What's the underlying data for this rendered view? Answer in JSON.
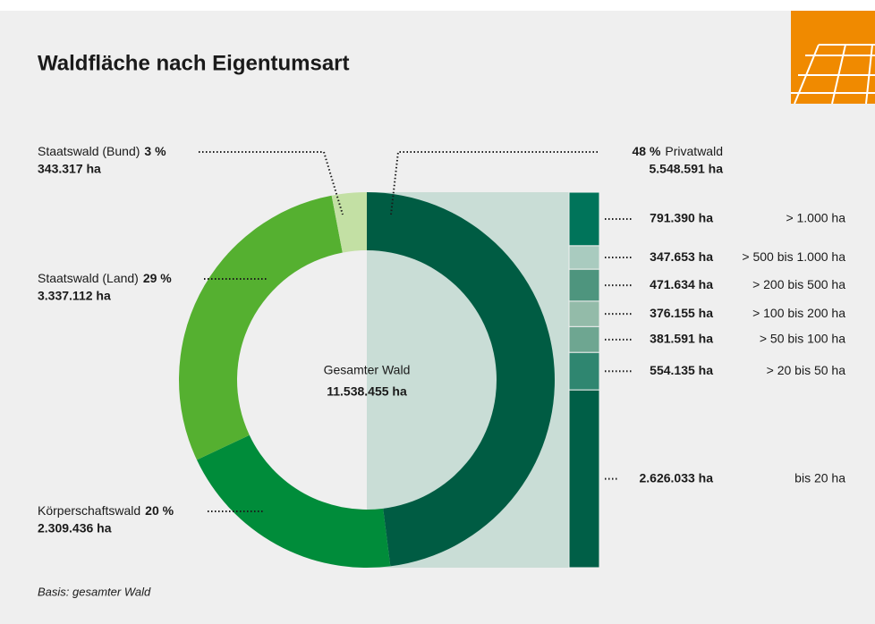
{
  "chart_data": {
    "type": "donut",
    "title": "Waldfläche nach Eigentumsart",
    "center_label": "Gesamter Wald",
    "center_value": "11.538.455 ha",
    "note": "Basis: gesamter Wald",
    "slices": {
      "labels": [
        "Privatwald",
        "Körperschaftswald",
        "Staatswald (Land)",
        "Staatswald (Bund)"
      ],
      "values": [
        48,
        20,
        29,
        3
      ],
      "value_labels": [
        "48 %",
        "20 %",
        "29 %",
        "3 %"
      ],
      "area_labels": [
        "5.548.591 ha",
        "2.309.436 ha",
        "3.337.112 ha",
        "343.317 ha"
      ],
      "colors": [
        "#005c43",
        "#008c3a",
        "#55b030",
        "#c3e0a4"
      ]
    },
    "breakdown": {
      "categories": [
        "> 1.000 ha",
        "> 500 bis 1.000 ha",
        "> 200 bis 500 ha",
        "> 100 bis 200 ha",
        "> 50 bis 100 ha",
        "> 20 bis 50 ha",
        "bis 20 ha"
      ],
      "values": [
        791390,
        347653,
        471634,
        376155,
        381591,
        554135,
        2626033
      ],
      "value_labels": [
        "791.390 ha",
        "347.653 ha",
        "471.634 ha",
        "376.155 ha",
        "381.591 ha",
        "554.135 ha",
        "2.626.033 ha"
      ],
      "colors": [
        "#00745a",
        "#a9cbbf",
        "#4e957e",
        "#93bba9",
        "#6ea691",
        "#2f8670",
        "#005f47"
      ]
    }
  }
}
